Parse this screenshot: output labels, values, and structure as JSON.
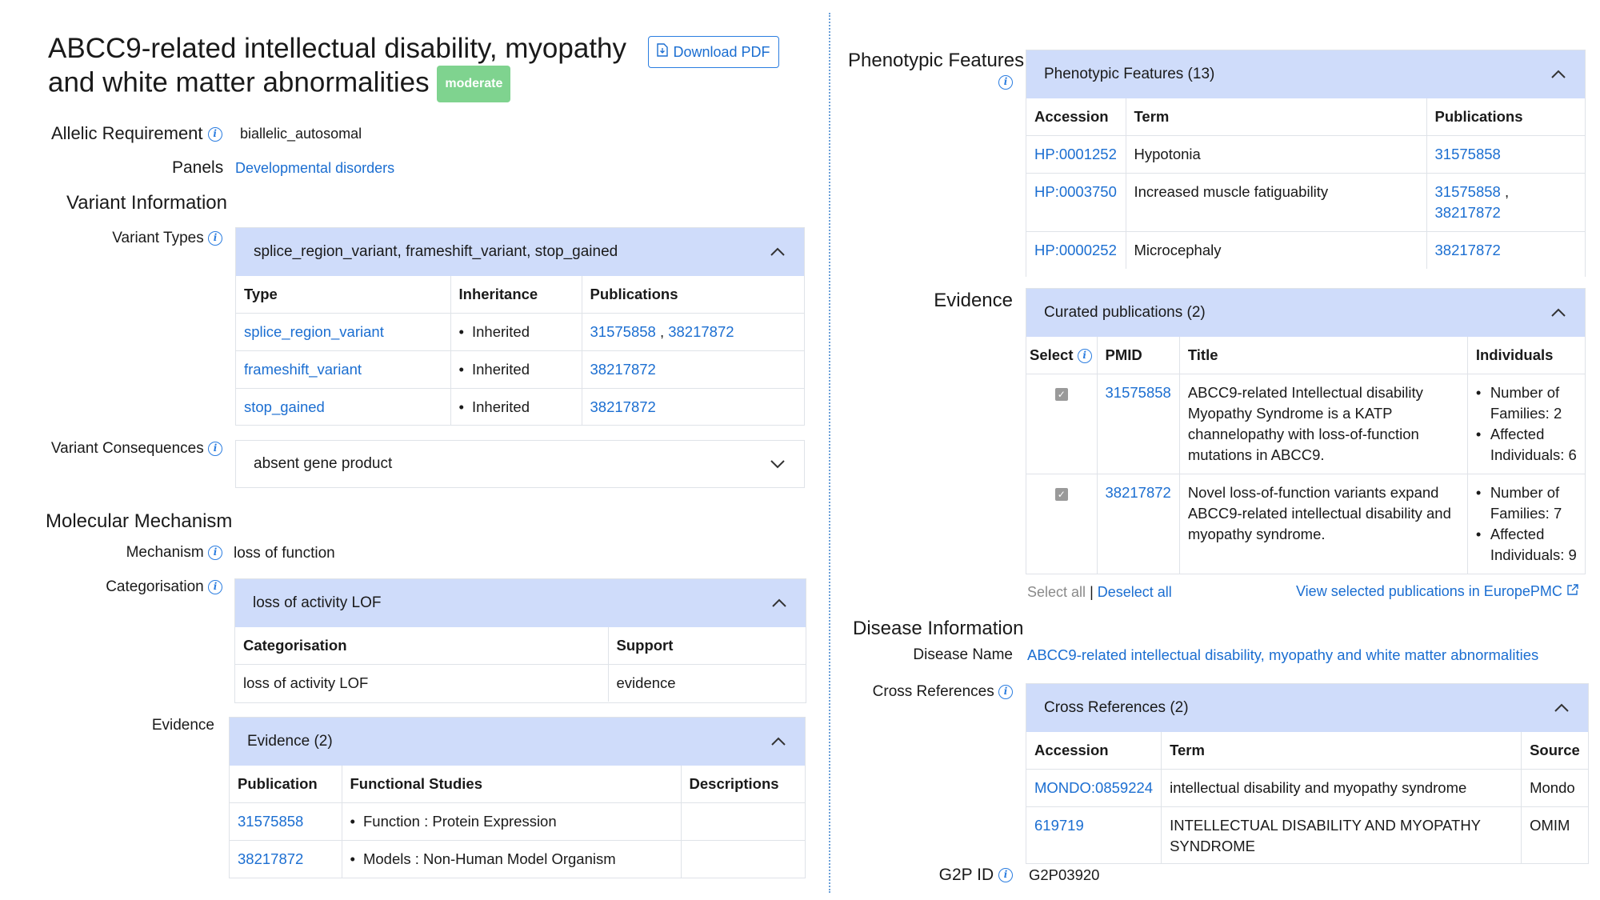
{
  "title": {
    "line1": "ABCC9-related intellectual disability, myopathy",
    "line2": "and white matter abnormalities",
    "badge": "moderate"
  },
  "download_pdf": "Download PDF",
  "allelic": {
    "label": "Allelic Requirement",
    "value": "biallelic_autosomal"
  },
  "panels": {
    "label": "Panels",
    "value": "Developmental disorders"
  },
  "variant_info": {
    "title": "Variant Information",
    "types_label": "Variant Types",
    "types_panel": {
      "header": "splice_region_variant, frameshift_variant, stop_gained",
      "columns": [
        "Type",
        "Inheritance",
        "Publications"
      ],
      "rows": [
        {
          "type": "splice_region_variant",
          "inheritance": "Inherited",
          "pub1": "31575858",
          "sep": " , ",
          "pub2": "38217872"
        },
        {
          "type": "frameshift_variant",
          "inheritance": "Inherited",
          "pub1": "38217872"
        },
        {
          "type": "stop_gained",
          "inheritance": "Inherited",
          "pub1": "38217872"
        }
      ]
    },
    "consequences_label": "Variant Consequences",
    "consequences_value": "absent gene product"
  },
  "molecular": {
    "title": "Molecular Mechanism",
    "mechanism_label": "Mechanism",
    "mechanism_value": "loss of function",
    "categorisation_label": "Categorisation",
    "categorisation_panel": {
      "header": "loss of activity LOF",
      "columns": [
        "Categorisation",
        "Support"
      ],
      "row": {
        "categorisation": "loss of activity LOF",
        "support": "evidence"
      }
    },
    "evidence_label": "Evidence",
    "evidence_panel": {
      "header": "Evidence (2)",
      "columns": [
        "Publication",
        "Functional Studies",
        "Descriptions"
      ],
      "rows": [
        {
          "publication": "31575858",
          "study": "Function : Protein Expression",
          "description": ""
        },
        {
          "publication": "38217872",
          "study": "Models : Non-Human Model Organism",
          "description": ""
        }
      ]
    }
  },
  "phenotypic": {
    "title": "Phenotypic Features",
    "panel": {
      "header": "Phenotypic Features (13)",
      "columns": [
        "Accession",
        "Term",
        "Publications"
      ],
      "rows": [
        {
          "accession": "HP:0001252",
          "term": "Hypotonia",
          "pub1": "31575858"
        },
        {
          "accession": "HP:0003750",
          "term": "Increased muscle fatiguability",
          "pub1": "31575858",
          "sep": " ,",
          "pub2": "38217872"
        },
        {
          "accession": "HP:0000252",
          "term": "Microcephaly",
          "pub1": "38217872"
        }
      ]
    }
  },
  "evidence": {
    "title": "Evidence",
    "panel": {
      "header": "Curated publications (2)",
      "columns": [
        "Select",
        "PMID",
        "Title",
        "Individuals"
      ],
      "rows": [
        {
          "pmid": "31575858",
          "title": "ABCC9-related Intellectual disability Myopathy Syndrome is a KATP channelopathy with loss-of-function mutations in ABCC9.",
          "ind1": "Number of Families: 2",
          "ind2": "Affected Individuals: 6"
        },
        {
          "pmid": "38217872",
          "title": "Novel loss-of-function variants expand ABCC9-related intellectual disability and myopathy syndrome.",
          "ind1": "Number of Families: 7",
          "ind2": "Affected Individuals: 9"
        }
      ]
    },
    "select_all": "Select all",
    "separator": "|",
    "deselect_all": "Deselect all",
    "view_selected": "View selected publications in EuropePMC"
  },
  "disease": {
    "title": "Disease Information",
    "name_label": "Disease Name",
    "name_value": "ABCC9-related intellectual disability, myopathy and white matter abnormalities",
    "xref_label": "Cross References",
    "xref_panel": {
      "header": "Cross References (2)",
      "columns": [
        "Accession",
        "Term",
        "Source"
      ],
      "rows": [
        {
          "accession": "MONDO:0859224",
          "term": "intellectual disability and myopathy syndrome",
          "source": "Mondo"
        },
        {
          "accession": "619719",
          "term": "INTELLECTUAL DISABILITY AND MYOPATHY SYNDROME",
          "source": "OMIM"
        }
      ]
    }
  },
  "g2p": {
    "label": "G2P ID",
    "value": "G2P03920"
  },
  "icons": {
    "info": "info-circle-icon",
    "chevron": "chevron-up-icon",
    "pdf": "pdf-file-icon",
    "external": "external-link-icon"
  },
  "colors": {
    "link": "#1b6ed1",
    "panel_header": "#cfdcfa",
    "badge": "#7fd38f"
  }
}
